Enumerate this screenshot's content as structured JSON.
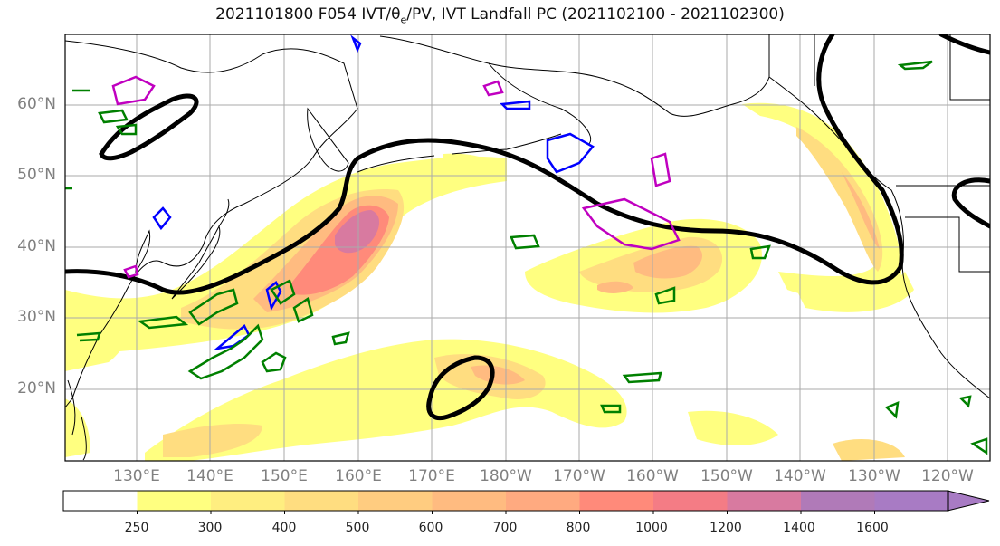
{
  "title": {
    "prefix": "2021101800 F054 IVT/θ",
    "sub": "e",
    "suffix": "/PV, IVT Landfall PC (2021102100 - 2021102300)"
  },
  "lat_labels": [
    "60°N",
    "50°N",
    "40°N",
    "30°N",
    "20°N"
  ],
  "lon_labels": [
    "130°E",
    "140°E",
    "150°E",
    "160°E",
    "170°E",
    "180°W",
    "170°W",
    "160°W",
    "150°W",
    "140°W",
    "130°W",
    "120°W"
  ],
  "colorbar": {
    "ticks": [
      "250",
      "300",
      "400",
      "500",
      "600",
      "700",
      "800",
      "1000",
      "1200",
      "1400",
      "1600"
    ],
    "colors": [
      "#ffffff",
      "#ffff80",
      "#ffee80",
      "#ffdd80",
      "#ffcc80",
      "#ffbb80",
      "#ffaa80",
      "#ff8a7a",
      "#f47c85",
      "#d87aa0",
      "#b07ab8",
      "#a87bc4"
    ]
  },
  "colors": {
    "land_outline": "#000000",
    "theta_e_contour": "#000000",
    "pv_green": "#008000",
    "pv_blue": "#0000ff",
    "pv_magenta": "#c000c0"
  }
}
